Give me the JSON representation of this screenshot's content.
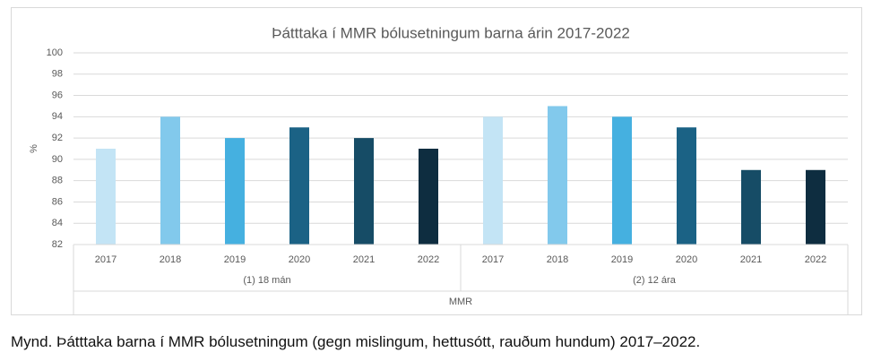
{
  "chart_data": {
    "type": "bar",
    "title": "Þátttaka í MMR bólusetningum barna árin 2017-2022",
    "ylabel": "%",
    "categories": [
      "2017",
      "2018",
      "2019",
      "2020",
      "2021",
      "2022",
      "2017",
      "2018",
      "2019",
      "2020",
      "2021",
      "2022"
    ],
    "groups": [
      "(1) 18 mán",
      "(2) 12 ára"
    ],
    "group_label": "MMR",
    "values": [
      91,
      94,
      92,
      93,
      92,
      91,
      94,
      95,
      94,
      93,
      89,
      89
    ],
    "colors": [
      "#c3e4f5",
      "#82c9ec",
      "#45b0e0",
      "#1b6285",
      "#164c66",
      "#0e2d40",
      "#c3e4f5",
      "#82c9ec",
      "#45b0e0",
      "#1b6285",
      "#164c66",
      "#0e2d40"
    ],
    "ylim": [
      82,
      100
    ],
    "yticks": [
      82,
      84,
      86,
      88,
      90,
      92,
      94,
      96,
      98,
      100
    ],
    "grid": true
  },
  "caption": "Mynd. Þátttaka barna í MMR bólusetningum (gegn mislingum, hettusótt, rauðum hundum) 2017–2022."
}
